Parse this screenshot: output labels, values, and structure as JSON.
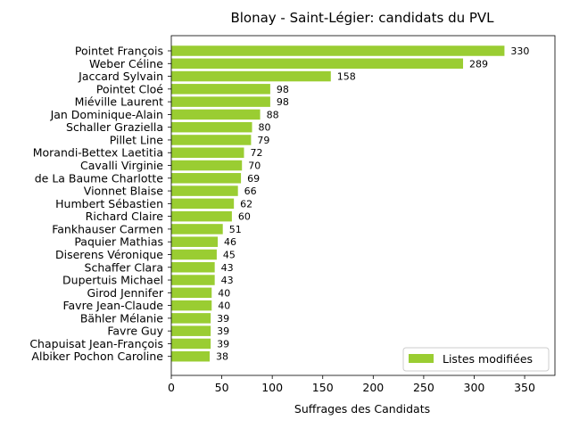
{
  "chart_data": {
    "type": "bar",
    "orientation": "horizontal",
    "title": "Blonay - Saint-Légier: candidats du PVL",
    "xlabel": "Suffrages des Candidats",
    "ylabel": "",
    "xlim": [
      0,
      380
    ],
    "x_ticks": [
      "0",
      "50",
      "100",
      "150",
      "200",
      "250",
      "300",
      "350"
    ],
    "grid": false,
    "legend_position": "lower-right",
    "bar_color": "#9acd32",
    "series": [
      {
        "name": "Listes modifiées",
        "values": [
          330,
          289,
          158,
          98,
          98,
          88,
          80,
          79,
          72,
          70,
          69,
          66,
          62,
          60,
          51,
          46,
          45,
          43,
          43,
          40,
          40,
          39,
          39,
          39,
          38
        ]
      }
    ],
    "categories": [
      "Pointet François",
      "Weber Céline",
      "Jaccard Sylvain",
      "Pointet Cloé",
      "Miéville Laurent",
      "Jan Dominique-Alain",
      "Schaller Graziella",
      "Pillet Line",
      "Morandi-Bettex Laetitia",
      "Cavalli Virginie",
      "de La Baume Charlotte",
      "Vionnet Blaise",
      "Humbert Sébastien",
      "Richard Claire",
      "Fankhauser Carmen",
      "Paquier Mathias",
      "Diserens Véronique",
      "Schaffer Clara",
      "Dupertuis Michael",
      "Girod Jennifer",
      "Favre Jean-Claude",
      "Bähler Mélanie",
      "Favre Guy",
      "Chapuisat Jean-François",
      "Albiker Pochon Caroline"
    ]
  }
}
